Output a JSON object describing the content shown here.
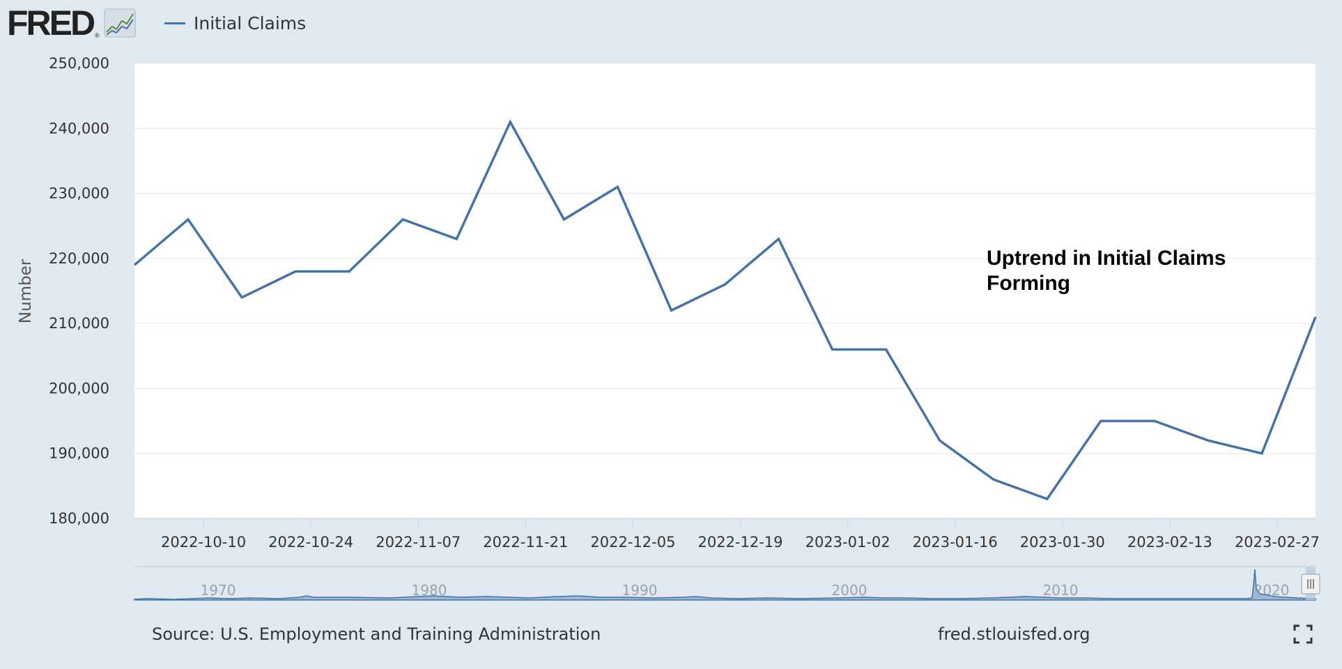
{
  "header": {
    "logo_text": "FRED",
    "legend_label": "Initial Claims",
    "series_color": "#4572a7"
  },
  "chart_data": {
    "type": "line",
    "ylabel": "Number",
    "ylim": [
      180000,
      250000
    ],
    "yticks": [
      180000,
      190000,
      200000,
      210000,
      220000,
      230000,
      240000,
      250000
    ],
    "ytick_labels": [
      "180,000",
      "190,000",
      "200,000",
      "210,000",
      "220,000",
      "230,000",
      "240,000",
      "250,000"
    ],
    "xlim": [
      "2022-10-01",
      "2023-03-04"
    ],
    "xticks": [
      "2022-10-10",
      "2022-10-24",
      "2022-11-07",
      "2022-11-21",
      "2022-12-05",
      "2022-12-19",
      "2023-01-02",
      "2023-01-16",
      "2023-01-30",
      "2023-02-13",
      "2023-02-27"
    ],
    "grid": true,
    "series": [
      {
        "name": "Initial Claims",
        "x": [
          "2022-10-01",
          "2022-10-08",
          "2022-10-15",
          "2022-10-22",
          "2022-10-29",
          "2022-11-05",
          "2022-11-12",
          "2022-11-19",
          "2022-11-26",
          "2022-12-03",
          "2022-12-10",
          "2022-12-17",
          "2022-12-24",
          "2022-12-31",
          "2023-01-07",
          "2023-01-14",
          "2023-01-21",
          "2023-01-28",
          "2023-02-04",
          "2023-02-11",
          "2023-02-18",
          "2023-02-25",
          "2023-03-04"
        ],
        "values": [
          219000,
          226000,
          214000,
          218000,
          218000,
          226000,
          223000,
          241000,
          226000,
          231000,
          212000,
          216000,
          223000,
          206000,
          206000,
          192000,
          186000,
          183000,
          195000,
          195000,
          192000,
          190000,
          211000
        ]
      }
    ],
    "annotation": "Uptrend in Initial Claims Forming",
    "annotation_lines": [
      "Uptrend in Initial Claims",
      "Forming"
    ],
    "navigator": {
      "labels": [
        "1970",
        "1980",
        "1990",
        "2000",
        "2010",
        "2020"
      ]
    }
  },
  "footer": {
    "source": "Source: U.S. Employment and Training Administration",
    "site": "fred.stlouisfed.org"
  }
}
